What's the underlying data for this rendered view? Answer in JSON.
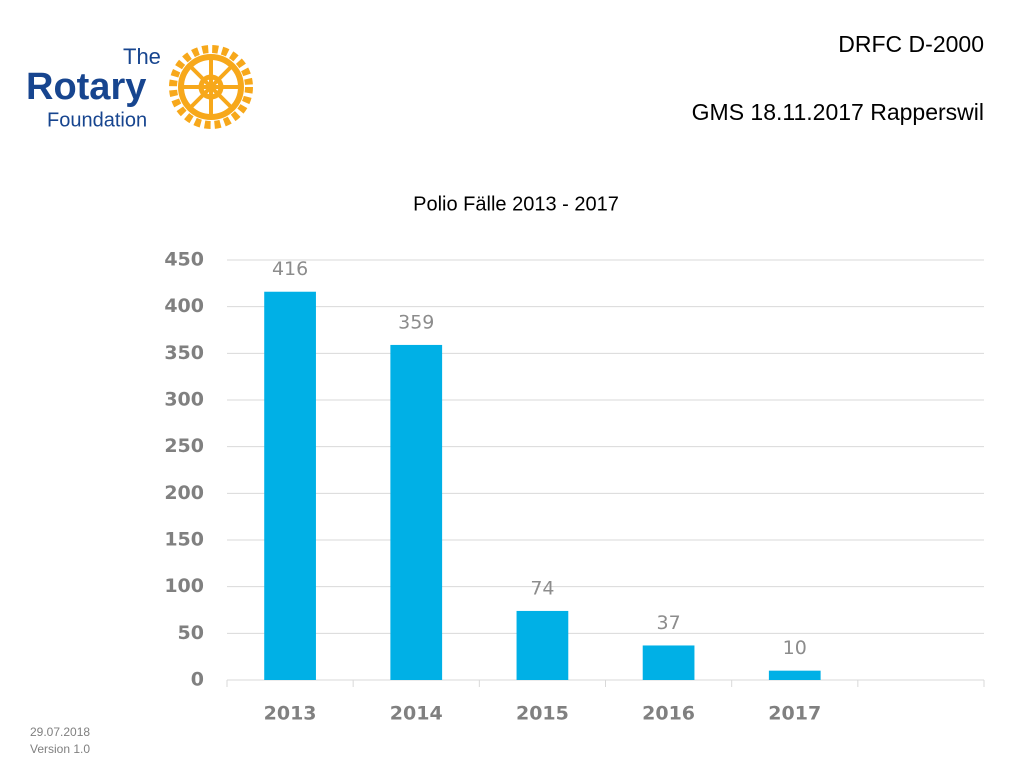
{
  "logo": {
    "line1": "The",
    "line2": "Rotary",
    "line3": "Foundation"
  },
  "header": {
    "line1": "DRFC D-2000",
    "line2": "GMS 18.11.2017 Rapperswil"
  },
  "footer": {
    "date": "29.07.2018",
    "version": "Version 1.0"
  },
  "chart_data": {
    "type": "bar",
    "title": "Polio Fälle 2013 - 2017",
    "categories": [
      "2013",
      "2014",
      "2015",
      "2016",
      "2017",
      null
    ],
    "values": [
      416,
      359,
      74,
      37,
      10,
      null
    ],
    "color": "#00b0e6",
    "ylim": [
      0,
      450
    ],
    "yticks": [
      0,
      50,
      100,
      150,
      200,
      250,
      300,
      350,
      400,
      450
    ],
    "grid": true,
    "data_labels": true
  }
}
